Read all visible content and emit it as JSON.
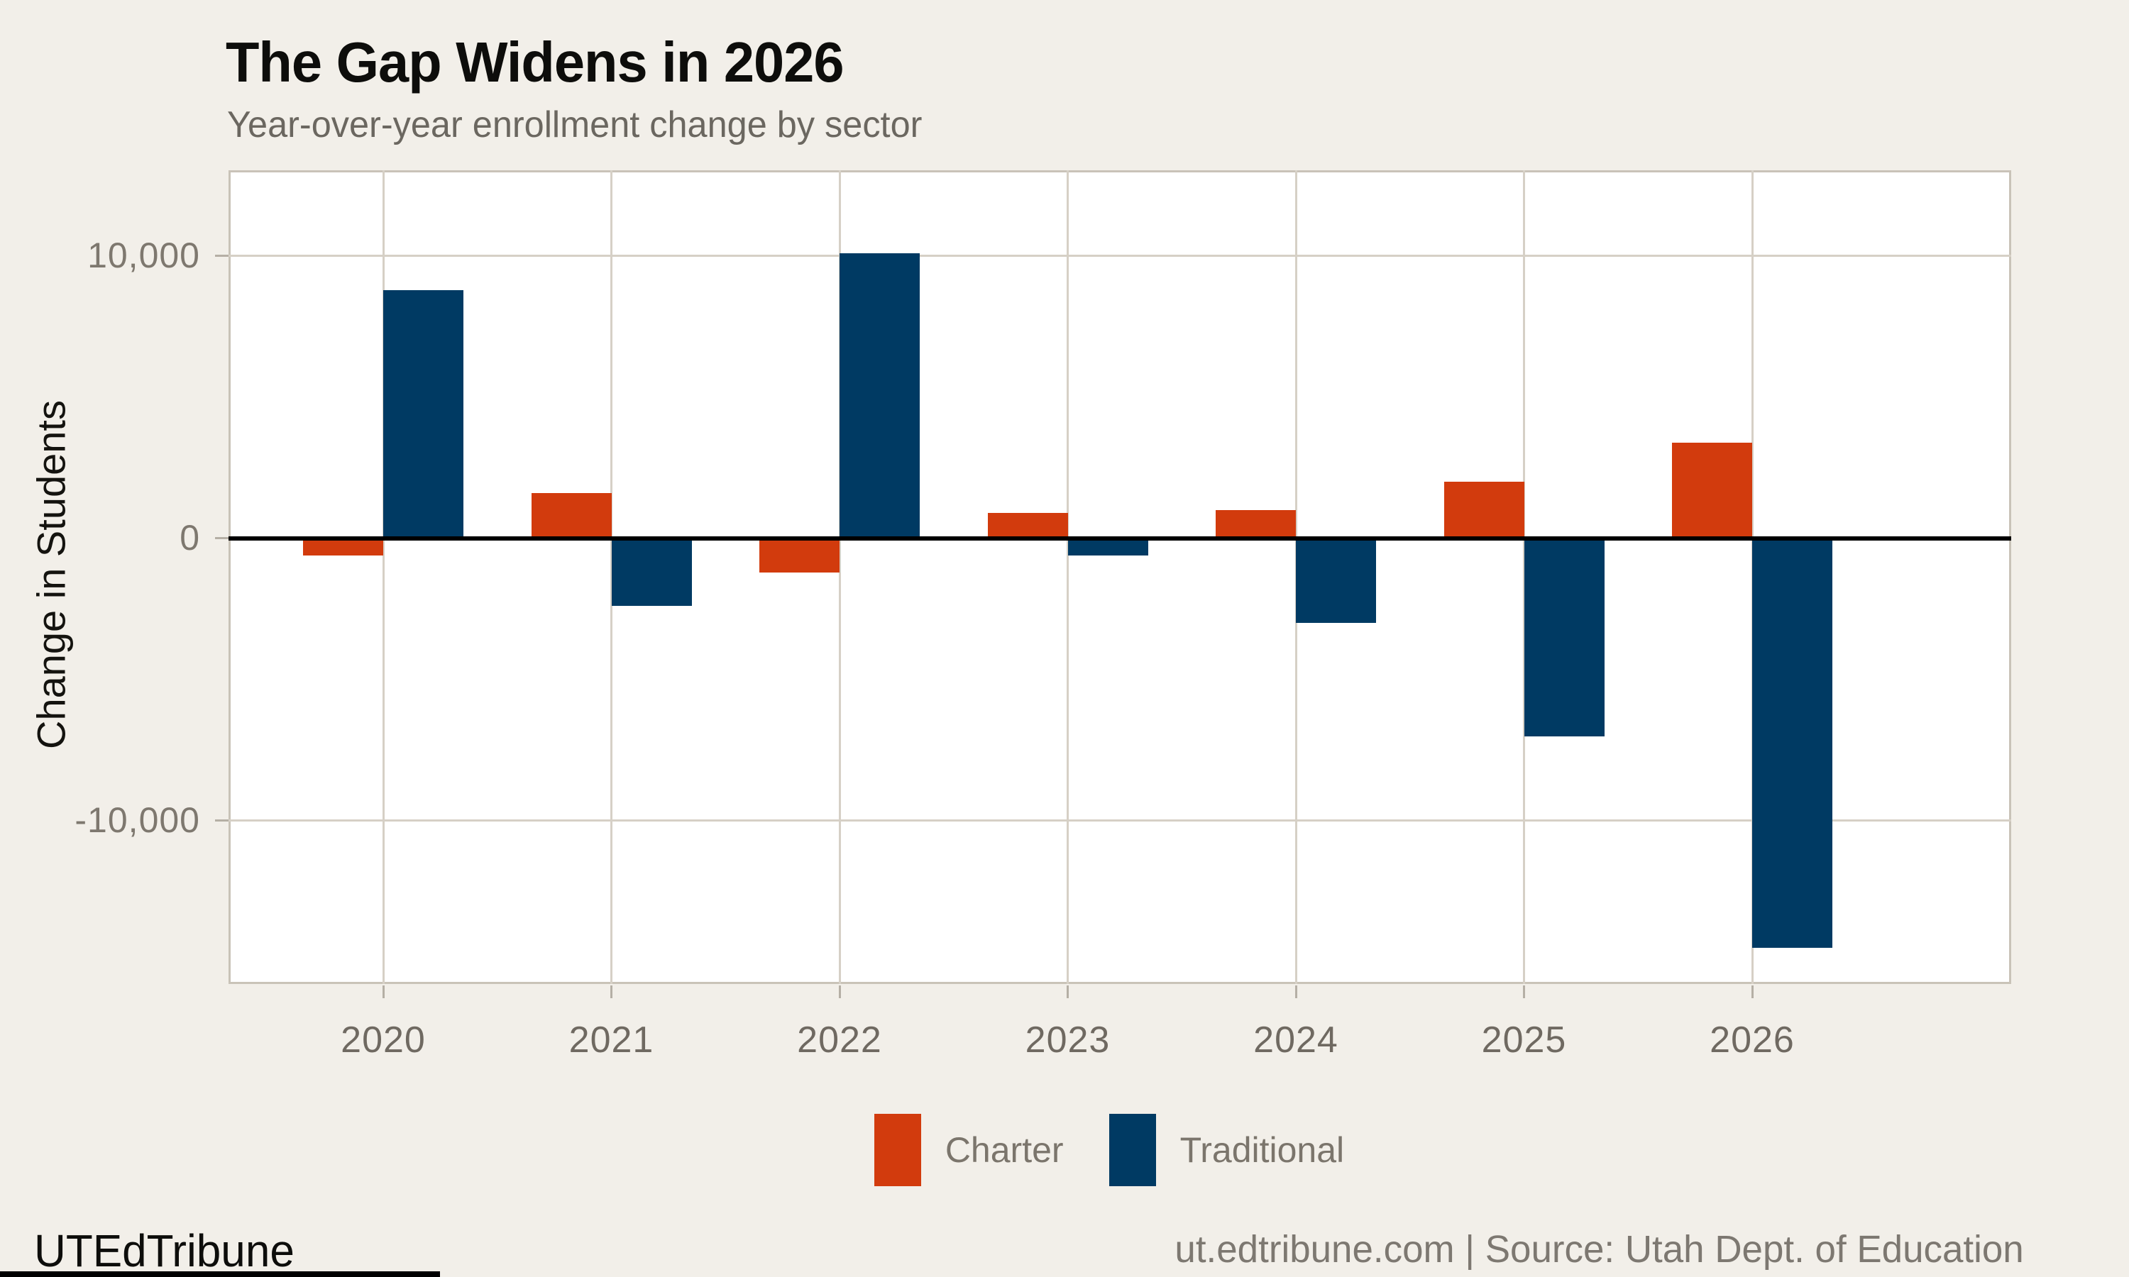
{
  "page": {
    "background": "#F2EFE9",
    "panel_background": "#FFFFFF"
  },
  "chart_data": {
    "type": "bar",
    "title": "The Gap Widens in 2026",
    "subtitle": "Year-over-year enrollment change by sector",
    "categories": [
      "2020",
      "2021",
      "2022",
      "2023",
      "2024",
      "2025",
      "2026"
    ],
    "series": [
      {
        "name": "Charter",
        "color": "#D23B0D",
        "values": [
          -600,
          1600,
          -1200,
          900,
          1000,
          2000,
          3400
        ]
      },
      {
        "name": "Traditional",
        "color": "#003A63",
        "values": [
          8800,
          -2400,
          10100,
          -600,
          -3000,
          -7000,
          -14500
        ]
      }
    ],
    "xlabel": "",
    "ylabel": "Change in Students",
    "ylim": [
      -15780,
      13040
    ],
    "yticks": [
      {
        "value": 10000,
        "label": "10,000"
      },
      {
        "value": 0,
        "label": "0"
      },
      {
        "value": -10000,
        "label": "-10,000"
      }
    ],
    "grid": true,
    "zero_line": true,
    "legend_position": "bottom"
  },
  "footer": {
    "brand": "UTEdTribune",
    "source": "ut.edtribune.com | Source: Utah Dept. of Education"
  }
}
